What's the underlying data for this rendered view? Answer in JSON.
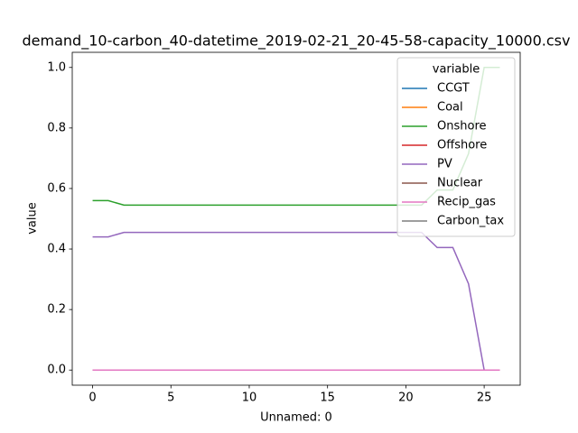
{
  "chart_data": {
    "type": "line",
    "title": "demand_10-carbon_40-datetime_2019-02-21_20-45-58-capacity_10000.csv",
    "xlabel": "Unnamed: 0",
    "ylabel": "value",
    "legend_title": "variable",
    "legend_position": "upper right",
    "x": [
      0,
      1,
      2,
      3,
      4,
      5,
      6,
      7,
      8,
      9,
      10,
      11,
      12,
      13,
      14,
      15,
      16,
      17,
      18,
      19,
      20,
      21,
      22,
      23,
      24,
      25,
      26
    ],
    "series": [
      {
        "name": "CCGT",
        "color": "#1f77b4",
        "values": [
          0,
          0,
          0,
          0,
          0,
          0,
          0,
          0,
          0,
          0,
          0,
          0,
          0,
          0,
          0,
          0,
          0,
          0,
          0,
          0,
          0,
          0,
          0,
          0,
          0,
          0,
          0
        ]
      },
      {
        "name": "Coal",
        "color": "#ff7f0e",
        "values": [
          0,
          0,
          0,
          0,
          0,
          0,
          0,
          0,
          0,
          0,
          0,
          0,
          0,
          0,
          0,
          0,
          0,
          0,
          0,
          0,
          0,
          0,
          0,
          0,
          0,
          0,
          0
        ]
      },
      {
        "name": "Onshore",
        "color": "#2ca02c",
        "values": [
          0.56,
          0.56,
          0.545,
          0.545,
          0.545,
          0.545,
          0.545,
          0.545,
          0.545,
          0.545,
          0.545,
          0.545,
          0.545,
          0.545,
          0.545,
          0.545,
          0.545,
          0.545,
          0.545,
          0.545,
          0.545,
          0.545,
          0.595,
          0.595,
          0.715,
          1,
          1
        ]
      },
      {
        "name": "Offshore",
        "color": "#d62728",
        "values": [
          0,
          0,
          0,
          0,
          0,
          0,
          0,
          0,
          0,
          0,
          0,
          0,
          0,
          0,
          0,
          0,
          0,
          0,
          0,
          0,
          0,
          0,
          0,
          0,
          0,
          0,
          0
        ]
      },
      {
        "name": "PV",
        "color": "#9467bd",
        "values": [
          0.44,
          0.44,
          0.455,
          0.455,
          0.455,
          0.455,
          0.455,
          0.455,
          0.455,
          0.455,
          0.455,
          0.455,
          0.455,
          0.455,
          0.455,
          0.455,
          0.455,
          0.455,
          0.455,
          0.455,
          0.455,
          0.455,
          0.405,
          0.405,
          0.285,
          0,
          0
        ]
      },
      {
        "name": "Nuclear",
        "color": "#8c564b",
        "values": [
          0,
          0,
          0,
          0,
          0,
          0,
          0,
          0,
          0,
          0,
          0,
          0,
          0,
          0,
          0,
          0,
          0,
          0,
          0,
          0,
          0,
          0,
          0,
          0,
          0,
          0,
          0
        ]
      },
      {
        "name": "Recip_gas",
        "color": "#e377c2",
        "values": [
          0,
          0,
          0,
          0,
          0,
          0,
          0,
          0,
          0,
          0,
          0,
          0,
          0,
          0,
          0,
          0,
          0,
          0,
          0,
          0,
          0,
          0,
          0,
          0,
          0,
          0,
          0
        ]
      },
      {
        "name": "Carbon_tax",
        "color": "#7f7f7f",
        "values": [
          null,
          null,
          null,
          null,
          null,
          null,
          null,
          null,
          null,
          null,
          null,
          null,
          null,
          null,
          null,
          null,
          null,
          null,
          null,
          null,
          null,
          null,
          null,
          null,
          null,
          null,
          null
        ]
      }
    ],
    "xlim": [
      -1.3,
      27.3
    ],
    "ylim": [
      -0.05,
      1.05
    ],
    "xticks": [
      0,
      5,
      10,
      15,
      20,
      25
    ],
    "yticks": [
      {
        "value": 0,
        "label": "0.0"
      },
      0.2,
      0.4,
      0.6,
      0.8,
      {
        "value": 1,
        "label": "1.0"
      }
    ],
    "grid": false
  }
}
